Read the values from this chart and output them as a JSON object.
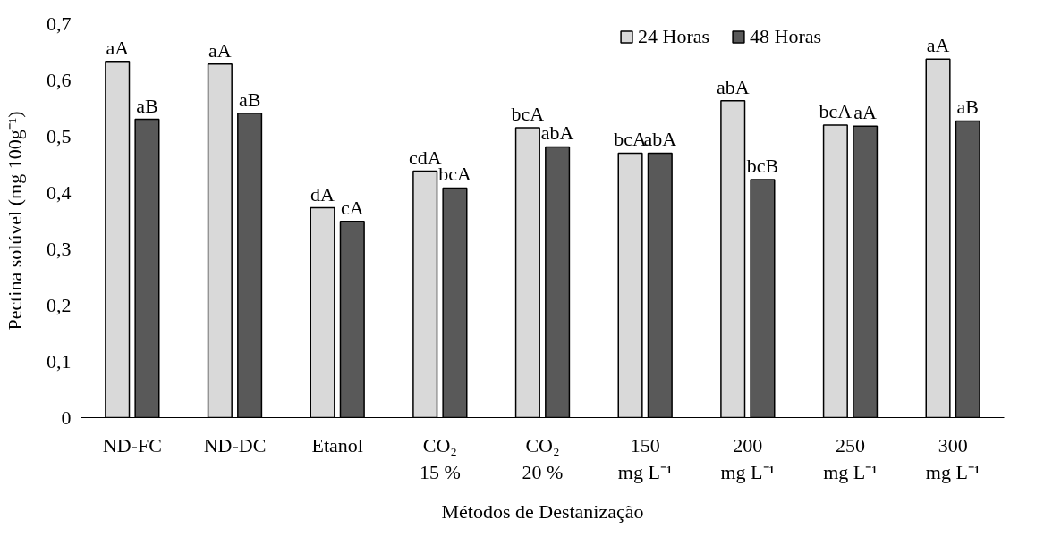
{
  "chart_data": {
    "type": "bar",
    "xlabel": "Métodos de Destanização",
    "ylabel": "Pectina solúvel (mg 100g⁻¹)",
    "categories": [
      "ND-FC",
      "ND-DC",
      "Etanol",
      "CO₂\n15 %",
      "CO₂\n20 %",
      "150\nmg L⁻¹",
      "200\nmg L⁻¹",
      "250\nmg L⁻¹",
      "300\nmg L⁻¹"
    ],
    "series": [
      {
        "name": "24 Horas",
        "color": "#d9d9d9",
        "values": [
          0.633,
          0.628,
          0.373,
          0.438,
          0.515,
          0.47,
          0.563,
          0.52,
          0.637
        ],
        "value_labels": [
          "aA",
          "aA",
          "dA",
          "cdA",
          "bcA",
          "bcA",
          "abA",
          "bcA",
          "aA"
        ]
      },
      {
        "name": "48 Horas",
        "color": "#595959",
        "values": [
          0.53,
          0.541,
          0.349,
          0.408,
          0.481,
          0.47,
          0.423,
          0.518,
          0.527
        ],
        "value_labels": [
          "aB",
          "aB",
          "cA",
          "bcA",
          "abA",
          "abA",
          "bcB",
          "aA",
          "aB"
        ]
      }
    ],
    "ylim": [
      0,
      0.7
    ],
    "yticks": [
      {
        "value": 0,
        "label": "0"
      },
      {
        "value": 0.1,
        "label": "0,1"
      },
      {
        "value": 0.2,
        "label": "0,2"
      },
      {
        "value": 0.3,
        "label": "0,3"
      },
      {
        "value": 0.4,
        "label": "0,4"
      },
      {
        "value": 0.5,
        "label": "0,5"
      },
      {
        "value": 0.6,
        "label": "0,6"
      },
      {
        "value": 0.7,
        "label": "0,7"
      }
    ],
    "grid": false,
    "legend": "top right"
  }
}
